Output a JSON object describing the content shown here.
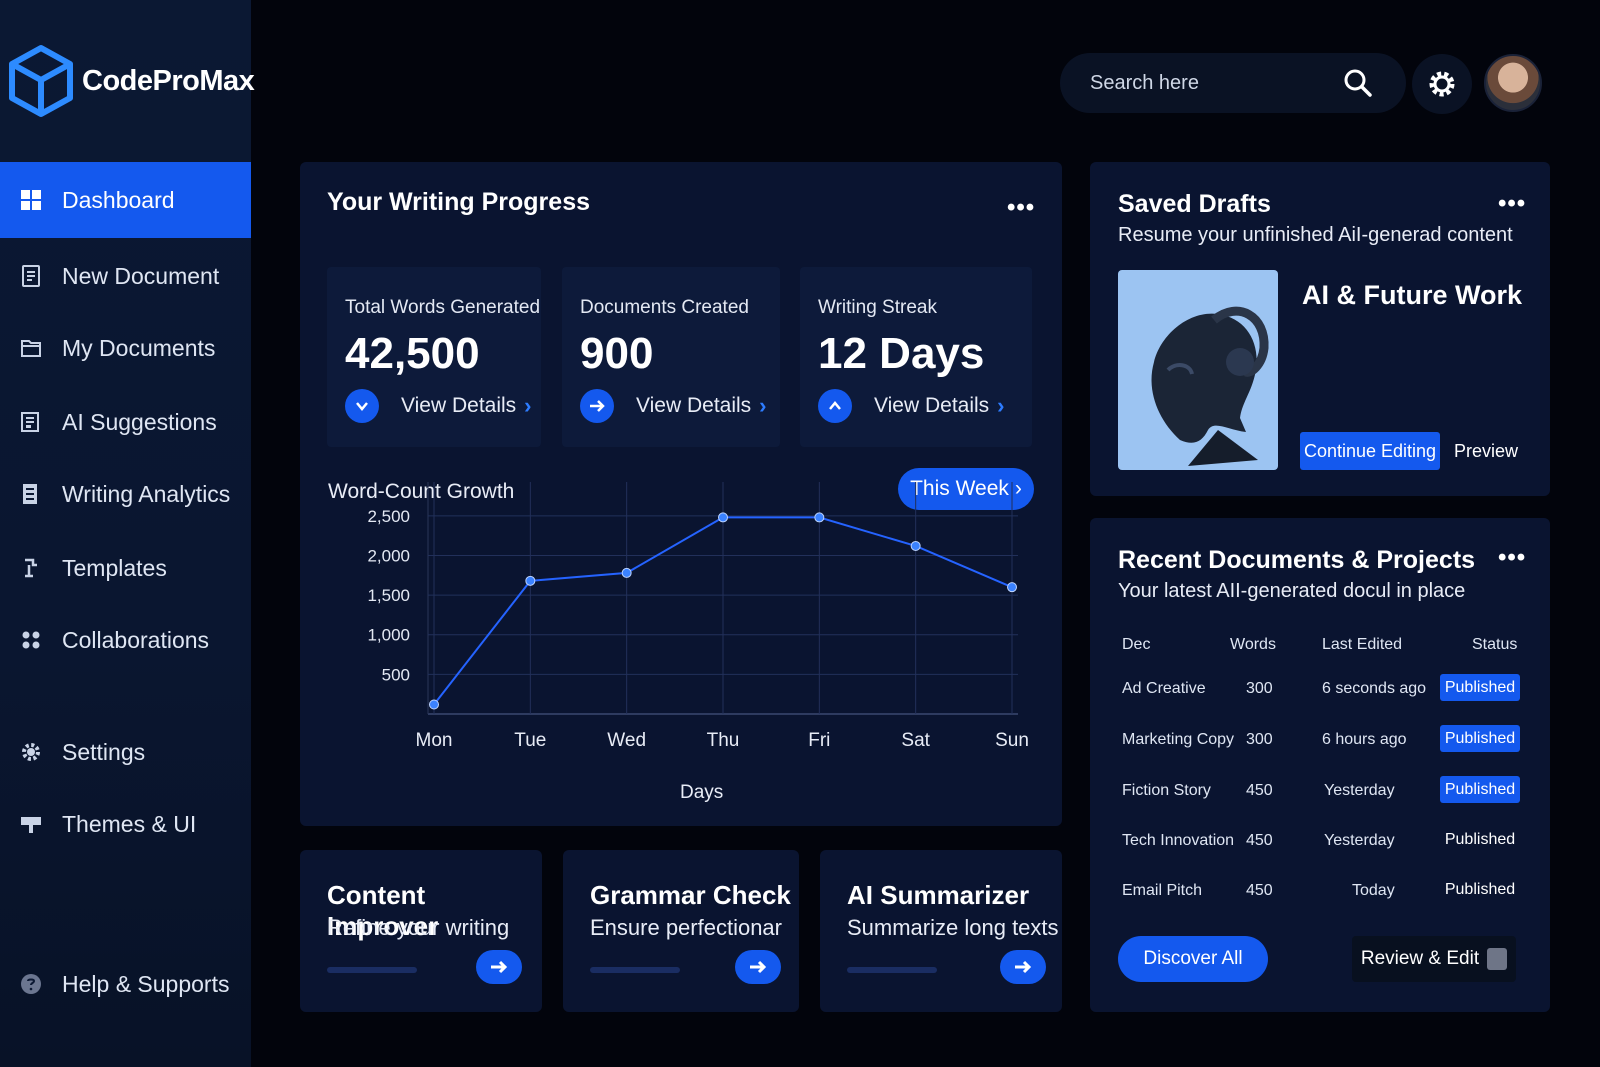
{
  "app": {
    "name": "CodeProMax"
  },
  "sidebar": {
    "items": [
      {
        "label": "Dashboard",
        "icon": "dashboard-icon",
        "active": true
      },
      {
        "label": "New Document",
        "icon": "new-document-icon"
      },
      {
        "label": "My Documents",
        "icon": "folder-icon"
      },
      {
        "label": "AI Suggestions",
        "icon": "suggestions-icon"
      },
      {
        "label": "Writing Analytics",
        "icon": "analytics-icon"
      },
      {
        "label": "Templates",
        "icon": "templates-icon"
      },
      {
        "label": "Collaborations",
        "icon": "collaborations-icon"
      },
      {
        "label": "Settings",
        "icon": "gear-icon"
      },
      {
        "label": "Themes & UI",
        "icon": "themes-icon"
      },
      {
        "label": "Help & Supports",
        "icon": "help-icon"
      }
    ]
  },
  "header": {
    "search_placeholder": "Search here"
  },
  "progress": {
    "title": "Your Writing Progress",
    "stats": [
      {
        "label": "Total Words Generated",
        "value": "42,500",
        "link": "View Details"
      },
      {
        "label": "Documents Created",
        "value": "900",
        "link": "View Details"
      },
      {
        "label": "Writing Streak",
        "value": "12 Days",
        "link": "View Details"
      }
    ],
    "chart_title": "Word-Count Growth",
    "range_button": "This Week"
  },
  "chart_data": {
    "type": "line",
    "title": "Word-Count Growth",
    "xlabel": "Days",
    "ylabel": "",
    "categories": [
      "Mon",
      "Tue",
      "Wed",
      "Thu",
      "Fri",
      "Sat",
      "Sun"
    ],
    "series": [
      {
        "values": [
          120,
          1680,
          1780,
          2480,
          2480,
          2120,
          1600
        ]
      }
    ],
    "yticks": [
      "500",
      "1,000",
      "1,500",
      "2,000",
      "2,500"
    ],
    "ytick_values": [
      500,
      1000,
      1500,
      2000,
      2500
    ],
    "ylim": [
      0,
      2700
    ],
    "grid": true,
    "color": "#2563ff"
  },
  "tools": [
    {
      "title": "Content Improver",
      "subtitle": "Refine your writing"
    },
    {
      "title": "Grammar Check",
      "subtitle": "Ensure perfectionar"
    },
    {
      "title": "AI Summarizer",
      "subtitle": "Summarize long texts"
    }
  ],
  "saved_drafts": {
    "title": "Saved Drafts",
    "subtitle": "Resume your unfinished  AiI-generad content",
    "draft_title": "AI & Future Work",
    "continue_label": "Continue Editing",
    "preview_label": "Preview"
  },
  "recent": {
    "title": "Recent Documents & Projects",
    "subtitle": "Your latest  AII-generated docul in place",
    "columns": [
      "Dec",
      "Words",
      "Last Edited",
      "Status"
    ],
    "rows": [
      {
        "name": "Ad Creative",
        "words": "300",
        "edited": "6 seconds ago",
        "status": "Published",
        "highlight": true
      },
      {
        "name": "Marketing Copy",
        "words": "300",
        "edited": "6 hours ago",
        "status": "Published",
        "highlight": true
      },
      {
        "name": "Fiction Story",
        "words": "450",
        "edited": "Yesterday",
        "status": "Published",
        "highlight": true
      },
      {
        "name": "Tech Innovation",
        "words": "450",
        "edited": "Yesterday",
        "status": "Published",
        "highlight": false
      },
      {
        "name": "Email Pitch",
        "words": "450",
        "edited": "Today",
        "status": "Published",
        "highlight": false
      }
    ],
    "discover_label": "Discover All",
    "review_label": "Review & Edit"
  },
  "colors": {
    "accent": "#1459ee",
    "sidebar": "#0b1833",
    "card": "#0a1430",
    "background": "#02040c"
  }
}
